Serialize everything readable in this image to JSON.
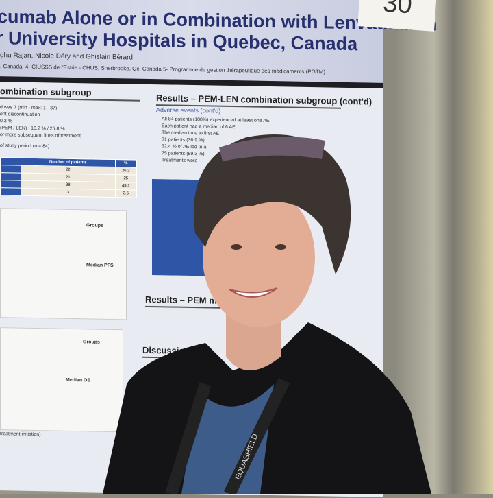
{
  "poster": {
    "number": "30",
    "title_line1": "cumab Alone or in Combination with Lenvatinib in",
    "title_line2": "r University Hospitals in Quebec, Canada",
    "authors": "ghu Rajan, Nicole Déry and Ghislain Bérard",
    "affiliation": ", Canada; 4- CIUSSS de l'Estrie - CHUS, Sherbrooke, Qc, Canada 5- Programme de gestion thérapeutique des médicaments (PGTM)",
    "left_section": "ombination subgroup",
    "left_text": [
      "d was 7 (min - max: 1 - 37)",
      "ent discontinuation :",
      "0.3 %",
      "(PEM / LEN) : 16.2 % / 25.8 %",
      "or more subsequent lines of treatment",
      "of study period (n = 84)"
    ],
    "table": {
      "headers": [
        "Number of patients",
        "%"
      ],
      "rows": [
        [
          "22",
          "26.2"
        ],
        [
          "21",
          "25"
        ],
        [
          "38",
          "45.2"
        ],
        [
          "3",
          "3.6"
        ]
      ]
    },
    "right_section": "Results – PEM-LEN combination subgroup (cont'd)",
    "right_sub": "Adverse events (cont'd)",
    "right_text": [
      "All 84 patients (100%) experienced at least one AE",
      "Each patient had a median of 6 AE",
      "The median time to first AE",
      "31 patients (36.9 %)",
      "32.4 % of AE led to a",
      "75 patients (89.3 %)",
      "Treatments were"
    ],
    "section_pem": "Results – PEM m",
    "discussion": "Discussion",
    "plot1_labels": [
      "Groups",
      "Median PFS"
    ],
    "plot2_labels": [
      "Groups",
      "Median OS"
    ],
    "bottom_caption": "treatment initiation)"
  },
  "badge_lanyard": "EQUASHIELD"
}
